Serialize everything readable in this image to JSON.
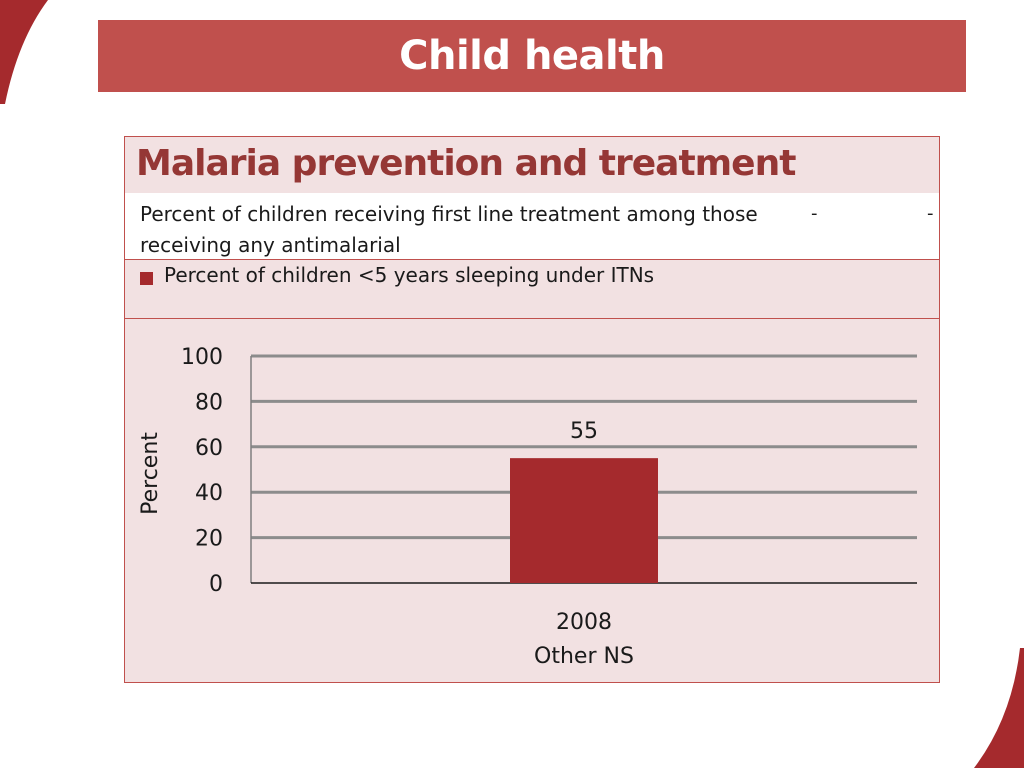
{
  "slide": {
    "title": "Child health"
  },
  "table": {
    "heading": "Malaria prevention and treatment",
    "treatment_label": "Percent of children receiving first line treatment among those receiving any antimalarial",
    "treatment_values": [
      "-",
      "-"
    ],
    "itn_label": "Percent of children <5 years sleeping under ITNs"
  },
  "colors": {
    "accent": "#c0504d",
    "bar": "#a52a2d",
    "heading": "#953735",
    "panel_bg": "#f2e1e2",
    "gridline": "#8c8c8c"
  },
  "chart_data": {
    "type": "bar",
    "categories": [
      "2008\nOther NS"
    ],
    "series": [
      {
        "name": "Percent of children <5 years sleeping under ITNs",
        "values": [
          55
        ]
      }
    ],
    "data_labels": [
      "55"
    ],
    "title": "",
    "xlabel": "",
    "ylabel": "Percent",
    "ylim": [
      0,
      100
    ],
    "yticks": [
      0,
      20,
      40,
      60,
      80,
      100
    ],
    "grid": true,
    "legend": "top-left"
  }
}
